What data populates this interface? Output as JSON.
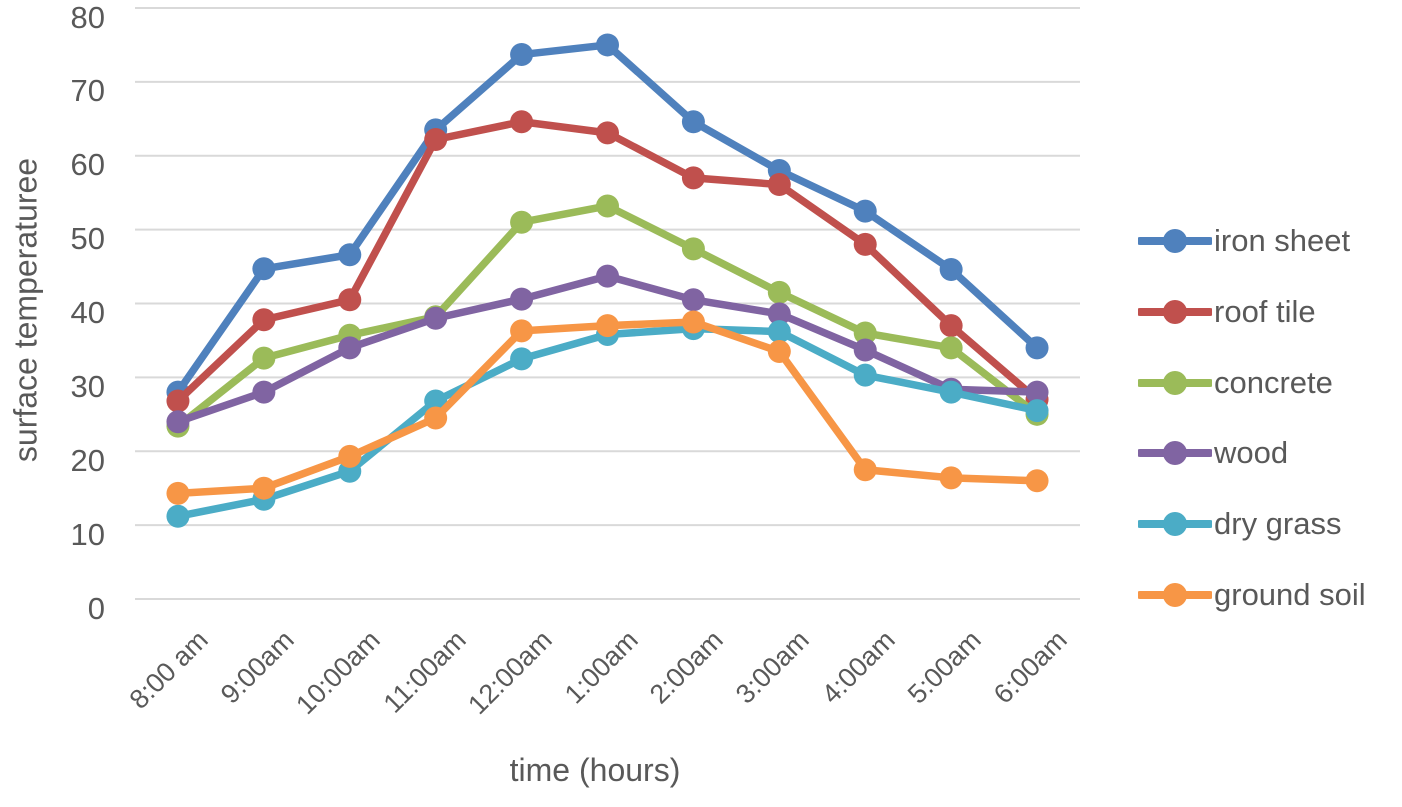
{
  "chart_data": {
    "type": "line",
    "title": "",
    "xlabel": "time (hours)",
    "ylabel": "surface temperaturee",
    "ylim": [
      0,
      80
    ],
    "yticks": [
      0,
      10,
      20,
      30,
      40,
      50,
      60,
      70,
      80
    ],
    "grid": true,
    "legend_position": "right",
    "categories": [
      "8:00 am",
      "9:00am",
      "10:00am",
      "11:00am",
      "12:00am",
      "1:00am",
      "2:00am",
      "3:00am",
      "4:00am",
      "5:00am",
      "6:00am"
    ],
    "series": [
      {
        "name": "iron sheet",
        "color": "#4F81BD",
        "values": [
          28,
          44.7,
          46.6,
          63.5,
          73.7,
          75,
          64.6,
          58,
          52.5,
          44.6,
          34
        ]
      },
      {
        "name": "roof tile",
        "color": "#C0504D",
        "values": [
          26.8,
          37.8,
          40.5,
          62.2,
          64.6,
          63.1,
          57,
          56.1,
          48,
          37,
          27
        ]
      },
      {
        "name": "concrete",
        "color": "#9BBB59",
        "values": [
          23.4,
          32.6,
          35.7,
          38.2,
          51,
          53.2,
          47.4,
          41.5,
          36,
          34,
          25
        ]
      },
      {
        "name": "wood",
        "color": "#8064A2",
        "values": [
          24,
          28,
          34,
          38,
          40.6,
          43.7,
          40.5,
          38.6,
          33.7,
          28.4,
          28
        ]
      },
      {
        "name": "dry grass",
        "color": "#4BACC6",
        "values": [
          11.2,
          13.5,
          17.3,
          26.8,
          32.5,
          35.8,
          36.6,
          36.2,
          30.3,
          28,
          25.5
        ]
      },
      {
        "name": "ground soil",
        "color": "#F79646",
        "values": [
          14.3,
          15,
          19.3,
          24.5,
          36.3,
          37,
          37.5,
          33.5,
          17.5,
          16.4,
          16
        ]
      }
    ]
  },
  "colors": {
    "text": "#595959",
    "gridline": "#D9D9D9",
    "background": "#FFFFFF"
  }
}
